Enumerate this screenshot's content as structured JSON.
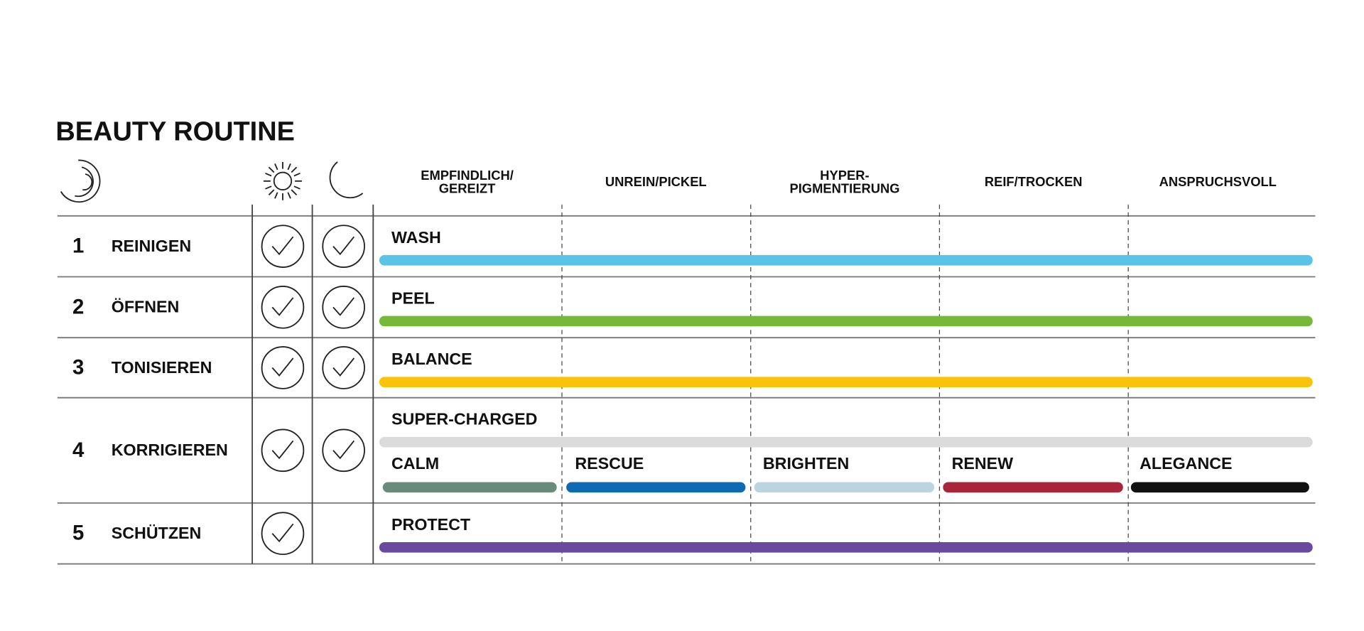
{
  "title": "BEAUTY ROUTINE",
  "columns": [
    [
      "EMPFINDLICH/",
      "GEREIZT"
    ],
    [
      "UNREIN/PICKEL"
    ],
    [
      "HYPER-",
      "PIGMENTIERUNG"
    ],
    [
      "REIF/TROCKEN"
    ],
    [
      "ANSPRUCHSVOLL"
    ]
  ],
  "rows": [
    {
      "number": 1,
      "label": "REINIGEN",
      "day": true,
      "night": true,
      "products": [
        {
          "name": "WASH",
          "color": "#5bc3e6"
        }
      ]
    },
    {
      "number": 2,
      "label": "ÖFFNEN",
      "day": true,
      "night": true,
      "products": [
        {
          "name": "PEEL",
          "color": "#76b83a"
        }
      ]
    },
    {
      "number": 3,
      "label": "TONISIEREN",
      "day": true,
      "night": true,
      "products": [
        {
          "name": "BALANCE",
          "color": "#f9c30a"
        }
      ]
    },
    {
      "number": 4,
      "label": "KORRIGIEREN",
      "day": true,
      "night": true,
      "products": [
        {
          "name": "SUPER-CHARGED",
          "color": "#dcdbdb"
        }
      ],
      "variants": [
        {
          "name": "CALM",
          "color": "#6a8a7c"
        },
        {
          "name": "RESCUE",
          "color": "#0f6ab4"
        },
        {
          "name": "BRIGHTEN",
          "color": "#bcd4e0"
        },
        {
          "name": "RENEW",
          "color": "#a9263a"
        },
        {
          "name": "ALEGANCE",
          "color": "#111111"
        }
      ]
    },
    {
      "number": 5,
      "label": "SCHÜTZEN",
      "day": true,
      "night": false,
      "products": [
        {
          "name": "PROTECT",
          "color": "#6a4a9e"
        }
      ]
    }
  ]
}
